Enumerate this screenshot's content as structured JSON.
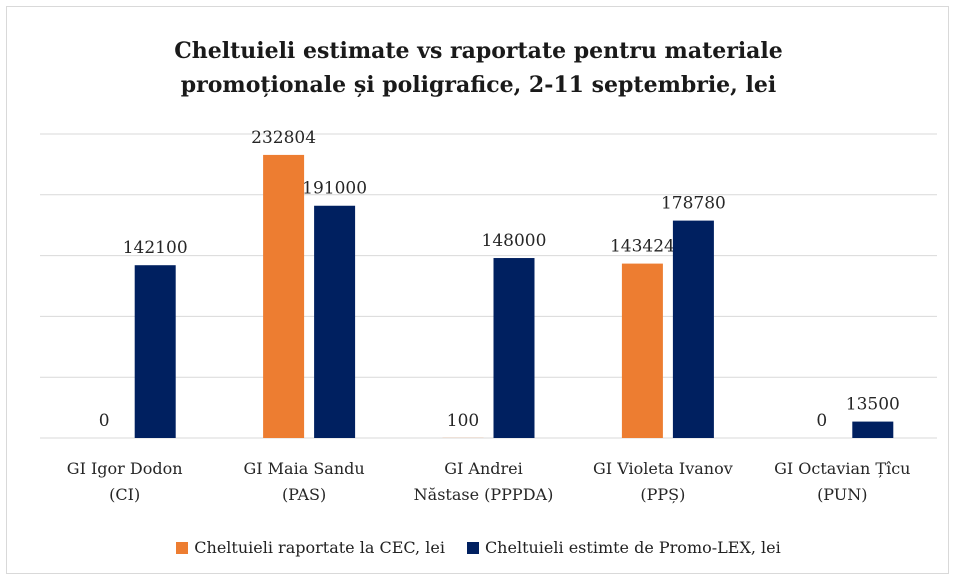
{
  "chart_data": {
    "type": "bar",
    "title": "Cheltuieli estimate vs raportate pentru materiale\npromoționale și poligrafice, 2-11 septembrie, lei",
    "categories": [
      "GI Igor Dodon\n(CI)",
      "GI Maia Sandu\n(PAS)",
      "GI Andrei\nNăstase (PPPDA)",
      "GI Violeta Ivanov\n(PPȘ)",
      "GI Octavian Țîcu\n(PUN)"
    ],
    "series": [
      {
        "name": "Cheltuieli raportate la CEC, lei",
        "color": "#ed7d31",
        "values": [
          0,
          232804,
          100,
          143424,
          0
        ]
      },
      {
        "name": "Cheltuieli estimte de Promo-LEX, lei",
        "color": "#002060",
        "values": [
          142100,
          191000,
          148000,
          178780,
          13500
        ]
      }
    ],
    "ylim": [
      0,
      250000
    ],
    "yticks": [
      0,
      50000,
      100000,
      150000,
      200000,
      250000
    ],
    "grid": true,
    "legend": "bottom"
  }
}
